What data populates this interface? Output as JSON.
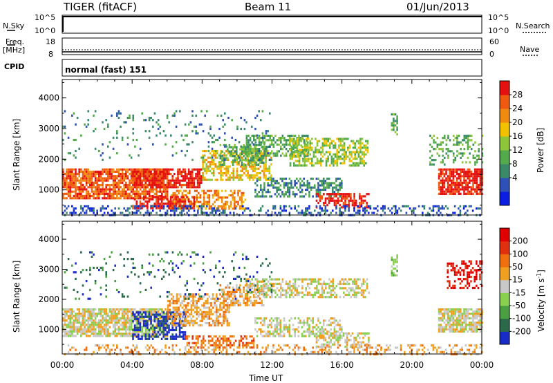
{
  "header": {
    "radar": "TIGER (fitACF)",
    "beam": "Beam 11",
    "date": "01/Jun/2013"
  },
  "strips": {
    "nsky_label": "N.Sky",
    "nsearch_label": "N.Search",
    "freq_label_1": "Freq.",
    "freq_label_2": "[MHz]",
    "nave_label": "Nave",
    "cpid_label": "CPID",
    "cpid_value": "normal (fast) 151",
    "noise_ticks": [
      "10^5",
      "10^0"
    ],
    "freq_ticks": [
      "18",
      "8"
    ],
    "nave_ticks": [
      "60",
      "0"
    ]
  },
  "chart_data": [
    {
      "type": "heatmap",
      "name": "Power",
      "ylabel": "Slant Range [km]",
      "xlabel": "",
      "x_ticks": [
        "00:00",
        "04:00",
        "08:00",
        "12:00",
        "16:00",
        "20:00",
        "00:00"
      ],
      "y_ticks": [
        1000,
        2000,
        3000,
        4000
      ],
      "ylim": [
        180,
        4600
      ],
      "xlim_hours": [
        0,
        24
      ],
      "colorbar": {
        "label": "Power [dB]",
        "ticks": [
          "28",
          "24",
          "20",
          "16",
          "12",
          "8",
          "4"
        ],
        "colors": [
          "#0a1fe0",
          "#2e51b8",
          "#3a8a6a",
          "#53aa4a",
          "#8ec63a",
          "#f2c200",
          "#f08a10",
          "#ef5a10",
          "#e51010"
        ]
      },
      "regions": [
        {
          "x0": 0,
          "x1": 6,
          "y0": 750,
          "y1": 1700,
          "level": 7,
          "density": 0.8
        },
        {
          "x0": 4,
          "x1": 8,
          "y0": 1100,
          "y1": 1700,
          "level": 8,
          "density": 0.75
        },
        {
          "x0": 6,
          "x1": 10.5,
          "y0": 400,
          "y1": 1000,
          "level": 6,
          "density": 0.55
        },
        {
          "x0": 4,
          "x1": 7.5,
          "y0": 400,
          "y1": 800,
          "level": 8,
          "density": 0.6
        },
        {
          "x0": 8,
          "x1": 12,
          "y0": 1300,
          "y1": 2300,
          "level": 5,
          "density": 0.55
        },
        {
          "x0": 9,
          "x1": 11.5,
          "y0": 1800,
          "y1": 2500,
          "level": 3,
          "density": 0.5
        },
        {
          "x0": 10.5,
          "x1": 14,
          "y0": 2100,
          "y1": 2800,
          "level": 3,
          "density": 0.55
        },
        {
          "x0": 11,
          "x1": 16,
          "y0": 800,
          "y1": 1400,
          "level": 2,
          "density": 0.5
        },
        {
          "x0": 13,
          "x1": 17.5,
          "y0": 1800,
          "y1": 2700,
          "level": 4,
          "density": 0.55
        },
        {
          "x0": 14.5,
          "x1": 17.5,
          "y0": 400,
          "y1": 900,
          "level": 8,
          "density": 0.55
        },
        {
          "x0": 0,
          "x1": 24,
          "y0": 200,
          "y1": 500,
          "level": 1,
          "density": 0.35
        },
        {
          "x0": 21.5,
          "x1": 24,
          "y0": 900,
          "y1": 1700,
          "level": 8,
          "density": 0.8
        },
        {
          "x0": 21,
          "x1": 24,
          "y0": 1800,
          "y1": 2800,
          "level": 3,
          "density": 0.3
        },
        {
          "x0": 18.8,
          "x1": 19.2,
          "y0": 2800,
          "y1": 3500,
          "level": 3,
          "density": 0.6
        },
        {
          "x0": 0,
          "x1": 12,
          "y0": 2000,
          "y1": 3600,
          "level": 2,
          "density": 0.08
        }
      ]
    },
    {
      "type": "heatmap",
      "name": "Velocity",
      "ylabel": "Slant Range [km]",
      "xlabel": "Time UT",
      "x_ticks": [
        "00:00",
        "04:00",
        "08:00",
        "12:00",
        "16:00",
        "20:00",
        "00:00"
      ],
      "y_ticks": [
        1000,
        2000,
        3000,
        4000
      ],
      "ylim": [
        180,
        4600
      ],
      "xlim_hours": [
        0,
        24
      ],
      "colorbar": {
        "label": "Velocity [m s^-1]",
        "ticks": [
          "200",
          "100",
          "50",
          "15",
          "-15",
          "-50",
          "-100",
          "-200"
        ],
        "colors": [
          "#1a2cc8",
          "#2a6a4a",
          "#4aa040",
          "#88d050",
          "#c8c8c8",
          "#f0a020",
          "#f07010",
          "#e03010",
          "#e00000"
        ]
      },
      "regions": [
        {
          "x0": 0,
          "x1": 6,
          "y0": 750,
          "y1": 1700,
          "level": 4,
          "density": 0.8
        },
        {
          "x0": 4,
          "x1": 7,
          "y0": 700,
          "y1": 1600,
          "level": 0,
          "density": 0.55
        },
        {
          "x0": 6,
          "x1": 9.5,
          "y0": 1100,
          "y1": 2200,
          "level": 5,
          "density": 0.6
        },
        {
          "x0": 7,
          "x1": 11,
          "y0": 400,
          "y1": 800,
          "level": 6,
          "density": 0.5
        },
        {
          "x0": 9,
          "x1": 11.5,
          "y0": 1800,
          "y1": 2500,
          "level": 5,
          "density": 0.5
        },
        {
          "x0": 10.5,
          "x1": 17.5,
          "y0": 2100,
          "y1": 2700,
          "level": 4,
          "density": 0.5
        },
        {
          "x0": 11,
          "x1": 16,
          "y0": 800,
          "y1": 1400,
          "level": 4,
          "density": 0.45
        },
        {
          "x0": 14.5,
          "x1": 17.5,
          "y0": 400,
          "y1": 900,
          "level": 4,
          "density": 0.5
        },
        {
          "x0": 0,
          "x1": 24,
          "y0": 200,
          "y1": 500,
          "level": 5,
          "density": 0.3
        },
        {
          "x0": 21.5,
          "x1": 24,
          "y0": 900,
          "y1": 1700,
          "level": 4,
          "density": 0.8
        },
        {
          "x0": 22,
          "x1": 24,
          "y0": 2400,
          "y1": 3300,
          "level": 8,
          "density": 0.45
        },
        {
          "x0": 18.8,
          "x1": 19.2,
          "y0": 2800,
          "y1": 3500,
          "level": 3,
          "density": 0.6
        },
        {
          "x0": 0,
          "x1": 12,
          "y0": 2000,
          "y1": 3600,
          "level": 1,
          "density": 0.08
        }
      ]
    }
  ]
}
